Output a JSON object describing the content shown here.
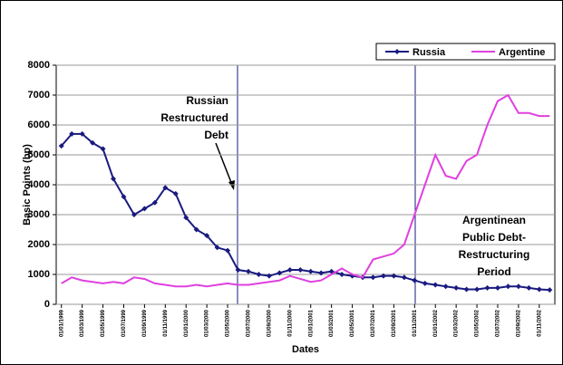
{
  "chart_data": {
    "type": "line",
    "y_label": "Basic Points (bp)",
    "x_label": "Dates",
    "categories": [
      "01/01/1999",
      null,
      "01/03/1999",
      null,
      "01/05/1999",
      null,
      "01/07/1999",
      null,
      "01/09/1999",
      null,
      "01/11/1999",
      null,
      "01/01/2000",
      null,
      "01/03/2000",
      null,
      "01/05/2000",
      null,
      "01/07/2000",
      null,
      "01/09/2000",
      null,
      "01/11/2000",
      null,
      "01/01/2001",
      null,
      "01/03/2001",
      null,
      "01/05/2001",
      null,
      "01/07/2001",
      null,
      "01/09/2001",
      null,
      "01/11/2001",
      null,
      "01/01/2002",
      null,
      "01/03/2002",
      null,
      "01/05/2002",
      null,
      "01/07/2002",
      null,
      "01/09/2002",
      null,
      "01/11/2002",
      null
    ],
    "series": [
      {
        "name": "Russia",
        "color": "#1a1a80",
        "marker": "diamond",
        "values": [
          5300,
          5700,
          5700,
          5400,
          5200,
          4200,
          3600,
          3000,
          3200,
          3400,
          3900,
          3700,
          2900,
          2500,
          2300,
          1900,
          1800,
          1150,
          1100,
          1000,
          950,
          1050,
          1150,
          1150,
          1100,
          1050,
          1100,
          1000,
          950,
          900,
          900,
          950,
          950,
          900,
          800,
          700,
          650,
          600,
          550,
          500,
          500,
          550,
          550,
          600,
          600,
          550,
          500,
          480
        ]
      },
      {
        "name": "Argentine",
        "color": "#e040e0",
        "marker": "none",
        "values": [
          700,
          900,
          800,
          750,
          700,
          750,
          700,
          900,
          850,
          700,
          650,
          600,
          600,
          650,
          600,
          650,
          700,
          650,
          650,
          700,
          750,
          800,
          950,
          850,
          750,
          800,
          1000,
          1200,
          1000,
          900,
          1500,
          1600,
          1700,
          2000,
          3000,
          4000,
          5000,
          4300,
          4200,
          4800,
          5000,
          6000,
          6800,
          7000,
          6400,
          6400,
          6300,
          6300
        ]
      }
    ],
    "ylim": [
      0,
      8000
    ],
    "yticks": [
      0,
      1000,
      2000,
      3000,
      4000,
      5000,
      6000,
      7000,
      8000
    ],
    "grid": true,
    "legend": "top-right",
    "annotations": [
      {
        "lines": [
          "Russian",
          "Restructured",
          "Debt"
        ]
      },
      {
        "lines": [
          "Argentinean",
          "Public Debt-",
          "Restructuring",
          "Period"
        ]
      }
    ]
  }
}
